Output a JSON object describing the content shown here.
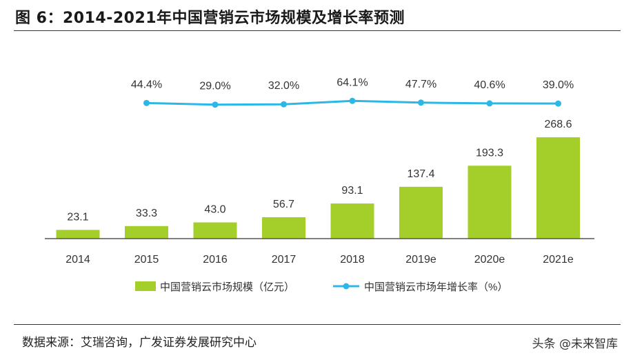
{
  "title": "图  6：2014-2021年中国营销云市场规模及增长率预测",
  "source": "数据来源：艾瑞咨询，广发证券发展研究中心",
  "watermark": "头条 @未来智库",
  "colors": {
    "bar": "#a4cf2a",
    "line": "#2cb7e6",
    "axis": "#555555",
    "text": "#333333"
  },
  "chart_data": {
    "type": "bar+line",
    "categories": [
      "2014",
      "2015",
      "2016",
      "2017",
      "2018",
      "2019e",
      "2020e",
      "2021e"
    ],
    "series": [
      {
        "name": "中国营销云市场规模（亿元）",
        "type": "bar",
        "values": [
          23.1,
          33.3,
          43.0,
          56.7,
          93.1,
          137.4,
          193.3,
          268.6
        ],
        "labels": [
          "23.1",
          "33.3",
          "43.0",
          "56.7",
          "93.1",
          "137.4",
          "193.3",
          "268.6"
        ]
      },
      {
        "name": "中国营销云市场年增长率（%）",
        "type": "line",
        "x": [
          "2015",
          "2016",
          "2017",
          "2018",
          "2019e",
          "2020e",
          "2021e"
        ],
        "values": [
          44.4,
          29.0,
          32.0,
          64.1,
          47.7,
          40.6,
          39.0
        ],
        "labels": [
          "44.4%",
          "29.0%",
          "32.0%",
          "64.1%",
          "47.7%",
          "40.6%",
          "39.0%"
        ]
      }
    ],
    "grid": false,
    "legend_position": "bottom"
  }
}
